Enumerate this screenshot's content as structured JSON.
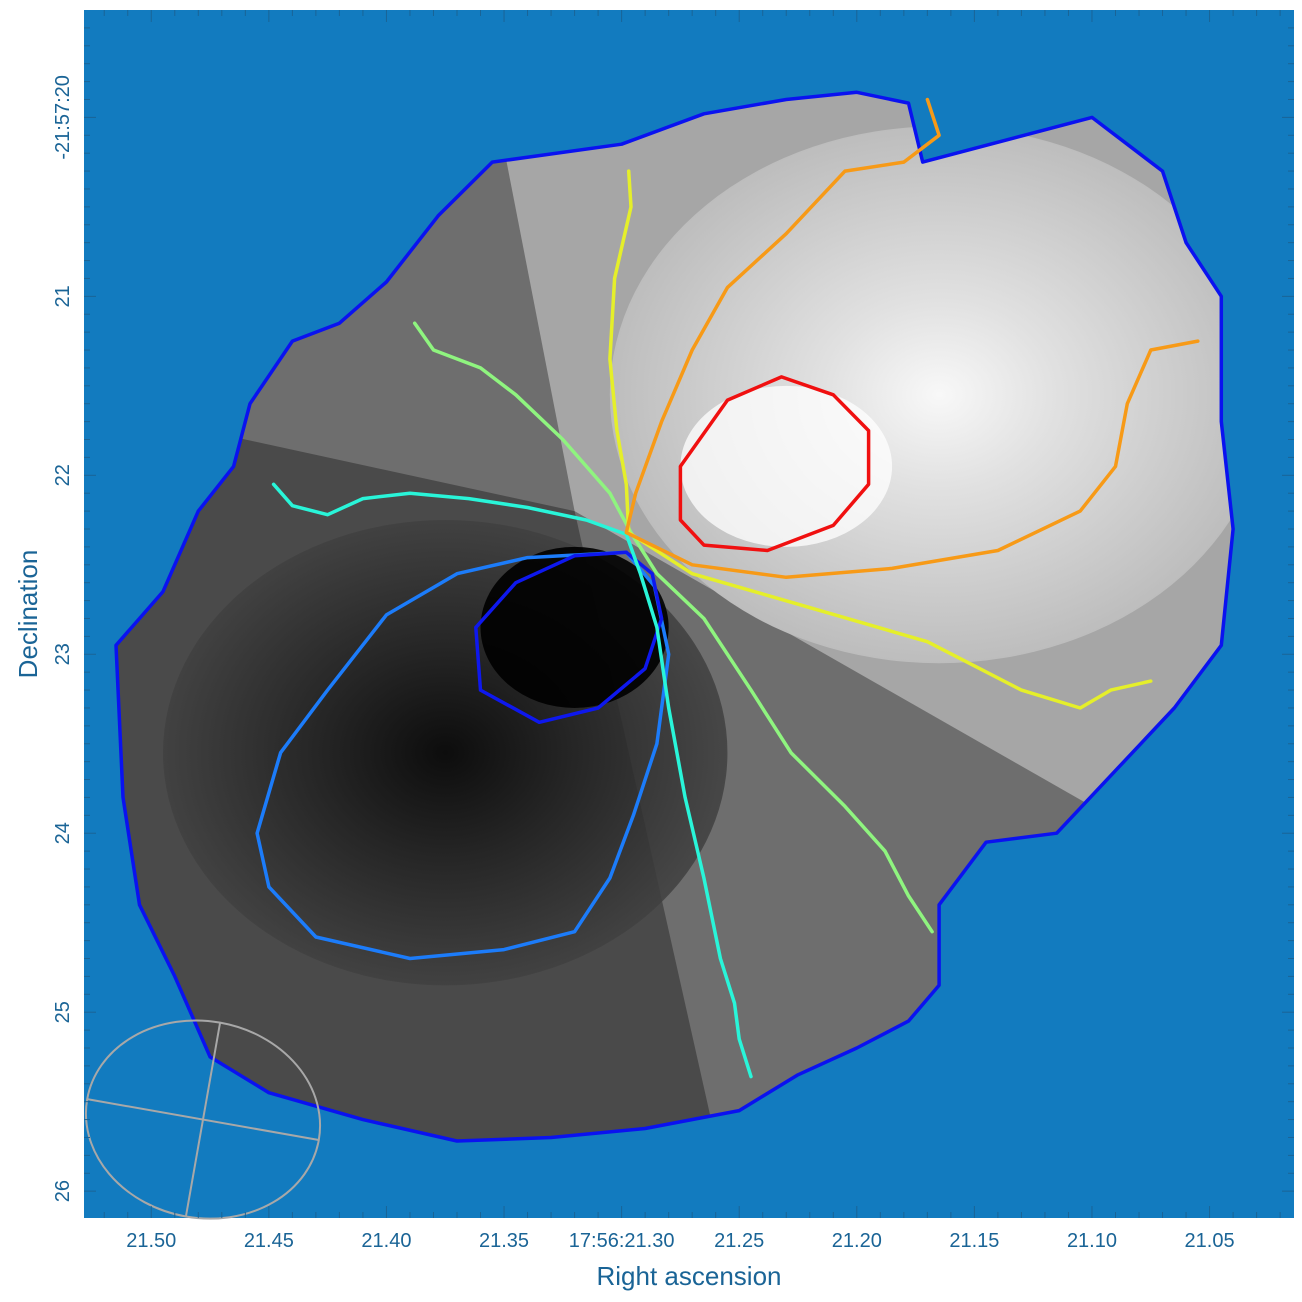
{
  "chart_data": {
    "type": "contour",
    "xlabel": "Right ascension",
    "ylabel": "Declination",
    "x_tick_labels": [
      "21.50",
      "21.45",
      "21.40",
      "21.35",
      "17:56:21.30",
      "21.25",
      "21.20",
      "21.15",
      "21.10",
      "21.05"
    ],
    "y_tick_labels": [
      "-21:57:20",
      "21",
      "22",
      "23",
      "24",
      "25",
      "26"
    ],
    "x_ticks_sec": [
      21.5,
      21.45,
      21.4,
      21.35,
      21.3,
      21.25,
      21.2,
      21.15,
      21.1,
      21.05
    ],
    "y_ticks_arcsec": [
      20,
      21,
      22,
      23,
      24,
      25,
      26
    ],
    "xlim_sec": [
      21.5286,
      21.0141
    ],
    "ylim_arcsec": [
      19.4,
      26.15
    ],
    "x_axis_direction": "right ascension decreases to the right",
    "y_axis_direction": "declination offset increases downward",
    "background_color": "#127bbf",
    "axis_color": "#1a6496",
    "image": "grayscale map, dark to the lower-left, bright to the upper-right",
    "beam_ellipse": {
      "ra_sec": 21.478,
      "dec_arcsec": 25.6,
      "width_sec": 0.05,
      "height_arcsec": 0.55,
      "angle_deg": 10,
      "color": "#a8a8a8"
    },
    "contours": [
      {
        "color": "#0a12f0",
        "points": [
          [
            21.378,
            20.55
          ],
          [
            21.355,
            20.25
          ],
          [
            21.3,
            20.15
          ],
          [
            21.265,
            19.98
          ],
          [
            21.23,
            19.9
          ],
          [
            21.2,
            19.86
          ],
          [
            21.178,
            19.92
          ],
          [
            21.172,
            20.25
          ],
          [
            21.1,
            20.0
          ],
          [
            21.07,
            20.3
          ],
          [
            21.06,
            20.7
          ],
          [
            21.045,
            21.0
          ],
          [
            21.045,
            21.7
          ],
          [
            21.04,
            22.3
          ],
          [
            21.045,
            22.95
          ],
          [
            21.065,
            23.3
          ],
          [
            21.09,
            23.65
          ],
          [
            21.115,
            24.0
          ],
          [
            21.145,
            24.05
          ],
          [
            21.165,
            24.4
          ],
          [
            21.165,
            24.85
          ],
          [
            21.178,
            25.05
          ],
          [
            21.2,
            25.2
          ],
          [
            21.225,
            25.35
          ],
          [
            21.25,
            25.55
          ],
          [
            21.29,
            25.65
          ],
          [
            21.33,
            25.7
          ],
          [
            21.37,
            25.72
          ],
          [
            21.41,
            25.6
          ],
          [
            21.45,
            25.45
          ],
          [
            21.475,
            25.25
          ],
          [
            21.49,
            24.8
          ],
          [
            21.505,
            24.4
          ],
          [
            21.512,
            23.8
          ],
          [
            21.515,
            22.95
          ],
          [
            21.495,
            22.65
          ],
          [
            21.48,
            22.2
          ],
          [
            21.465,
            21.95
          ],
          [
            21.458,
            21.6
          ],
          [
            21.44,
            21.25
          ],
          [
            21.42,
            21.15
          ],
          [
            21.4,
            20.92
          ],
          [
            21.378,
            20.55
          ]
        ]
      },
      {
        "color": "#1c7cfa",
        "points": [
          [
            21.298,
            22.43
          ],
          [
            21.34,
            22.46
          ],
          [
            21.37,
            22.55
          ],
          [
            21.4,
            22.78
          ],
          [
            21.425,
            23.2
          ],
          [
            21.445,
            23.55
          ],
          [
            21.455,
            24.0
          ],
          [
            21.45,
            24.3
          ],
          [
            21.43,
            24.58
          ],
          [
            21.39,
            24.7
          ],
          [
            21.35,
            24.65
          ],
          [
            21.32,
            24.55
          ],
          [
            21.305,
            24.25
          ],
          [
            21.295,
            23.9
          ],
          [
            21.285,
            23.5
          ],
          [
            21.28,
            23.0
          ],
          [
            21.286,
            22.62
          ],
          [
            21.298,
            22.43
          ]
        ]
      },
      {
        "color": "#0e18ee",
        "points": [
          [
            21.298,
            22.43
          ],
          [
            21.32,
            22.45
          ],
          [
            21.345,
            22.6
          ],
          [
            21.362,
            22.85
          ],
          [
            21.36,
            23.2
          ],
          [
            21.335,
            23.38
          ],
          [
            21.31,
            23.3
          ],
          [
            21.29,
            23.08
          ],
          [
            21.283,
            22.8
          ],
          [
            21.287,
            22.55
          ],
          [
            21.298,
            22.43
          ]
        ]
      },
      {
        "color": "#29f5d9",
        "points": [
          [
            21.448,
            22.05
          ],
          [
            21.44,
            22.17
          ],
          [
            21.425,
            22.22
          ],
          [
            21.41,
            22.13
          ],
          [
            21.39,
            22.1
          ],
          [
            21.365,
            22.13
          ],
          [
            21.34,
            22.18
          ],
          [
            21.315,
            22.25
          ],
          [
            21.298,
            22.33
          ],
          [
            21.292,
            22.55
          ],
          [
            21.285,
            22.85
          ],
          [
            21.28,
            23.3
          ],
          [
            21.273,
            23.8
          ],
          [
            21.265,
            24.25
          ],
          [
            21.258,
            24.7
          ],
          [
            21.252,
            24.95
          ],
          [
            21.25,
            25.15
          ],
          [
            21.245,
            25.36
          ]
        ]
      },
      {
        "color": "#8ff47f",
        "points": [
          [
            21.388,
            21.15
          ],
          [
            21.38,
            21.3
          ],
          [
            21.36,
            21.4
          ],
          [
            21.345,
            21.55
          ],
          [
            21.325,
            21.8
          ],
          [
            21.305,
            22.1
          ],
          [
            21.296,
            22.32
          ],
          [
            21.285,
            22.55
          ],
          [
            21.265,
            22.8
          ],
          [
            21.245,
            23.2
          ],
          [
            21.228,
            23.55
          ],
          [
            21.205,
            23.85
          ],
          [
            21.188,
            24.1
          ],
          [
            21.178,
            24.35
          ],
          [
            21.168,
            24.55
          ]
        ]
      },
      {
        "color": "#e5ef2a",
        "points": [
          [
            21.297,
            20.3
          ],
          [
            21.296,
            20.5
          ],
          [
            21.303,
            20.9
          ],
          [
            21.305,
            21.35
          ],
          [
            21.302,
            21.75
          ],
          [
            21.298,
            22.05
          ],
          [
            21.297,
            22.32
          ],
          [
            21.27,
            22.55
          ],
          [
            21.225,
            22.72
          ],
          [
            21.17,
            22.93
          ],
          [
            21.13,
            23.2
          ],
          [
            21.105,
            23.3
          ],
          [
            21.092,
            23.2
          ],
          [
            21.075,
            23.15
          ]
        ]
      },
      {
        "color": "#f79a17",
        "points": [
          [
            21.17,
            19.9
          ],
          [
            21.165,
            20.1
          ],
          [
            21.18,
            20.25
          ],
          [
            21.205,
            20.3
          ],
          [
            21.23,
            20.65
          ],
          [
            21.255,
            20.95
          ],
          [
            21.27,
            21.3
          ],
          [
            21.283,
            21.7
          ],
          [
            21.294,
            22.1
          ],
          [
            21.298,
            22.32
          ],
          [
            21.27,
            22.5
          ],
          [
            21.23,
            22.57
          ],
          [
            21.185,
            22.52
          ],
          [
            21.14,
            22.42
          ],
          [
            21.105,
            22.2
          ],
          [
            21.09,
            21.95
          ],
          [
            21.085,
            21.6
          ],
          [
            21.075,
            21.3
          ],
          [
            21.055,
            21.25
          ]
        ]
      },
      {
        "color": "#f01010",
        "points": [
          [
            21.275,
            22.12
          ],
          [
            21.275,
            22.25
          ],
          [
            21.265,
            22.39
          ],
          [
            21.238,
            22.42
          ],
          [
            21.21,
            22.28
          ],
          [
            21.195,
            22.05
          ],
          [
            21.195,
            21.75
          ],
          [
            21.21,
            21.55
          ],
          [
            21.232,
            21.45
          ],
          [
            21.255,
            21.58
          ],
          [
            21.275,
            21.95
          ],
          [
            21.275,
            22.12
          ]
        ]
      }
    ]
  }
}
